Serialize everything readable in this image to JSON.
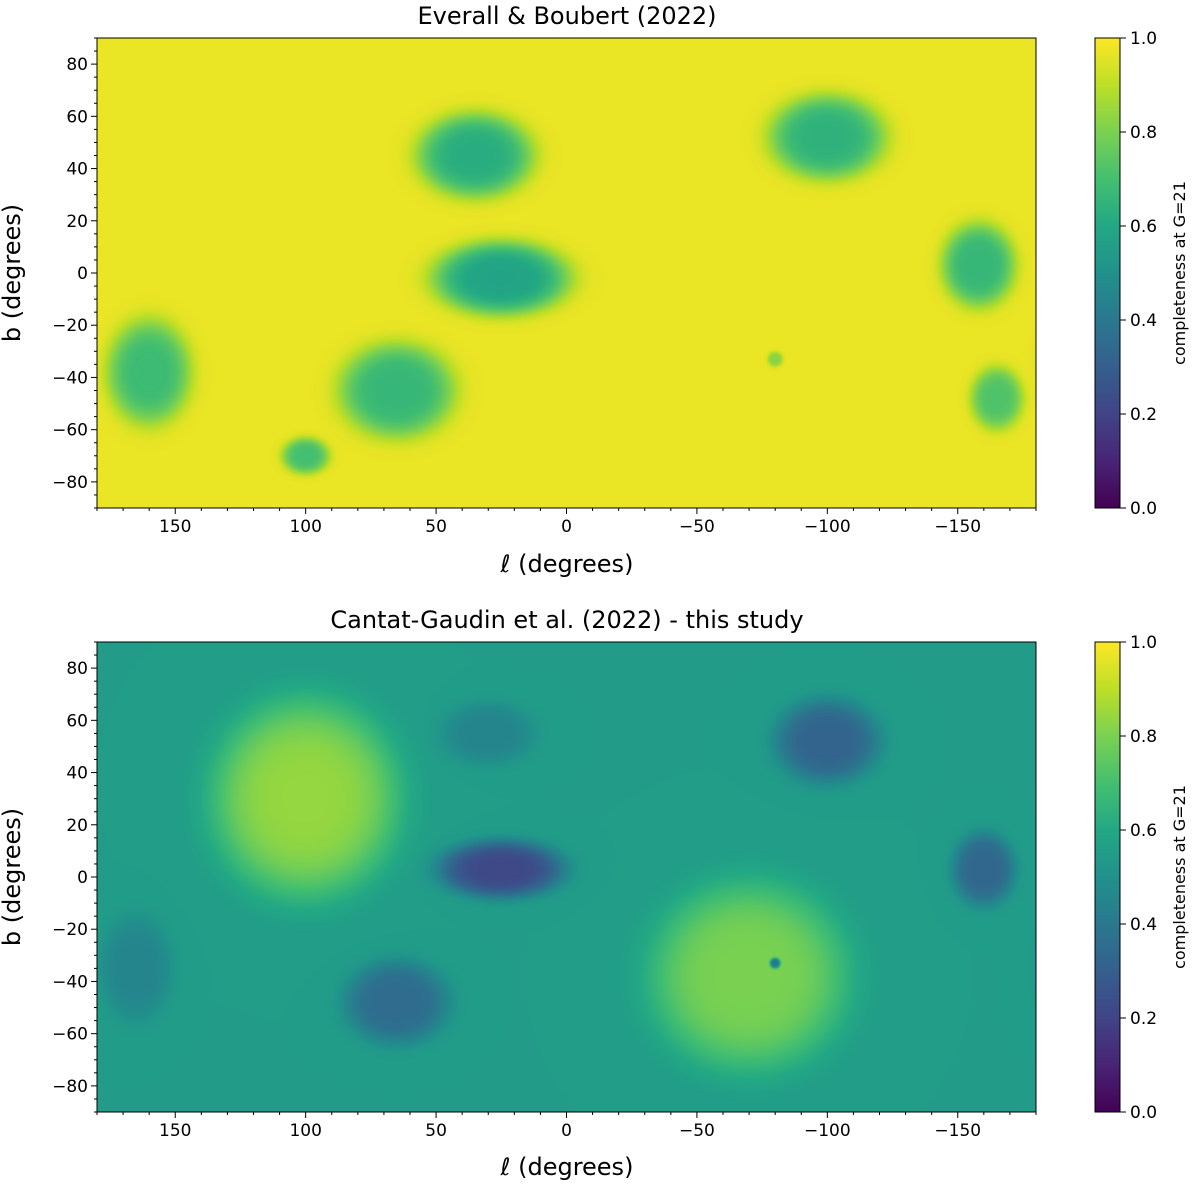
{
  "chart_data": [
    {
      "type": "heatmap",
      "title": "Everall & Boubert (2022)",
      "xlabel": "ℓ (degrees)",
      "ylabel": "b (degrees)",
      "xlim": [
        180,
        -180
      ],
      "ylim": [
        -90,
        90
      ],
      "x_ticks": [
        150,
        100,
        50,
        0,
        -50,
        -100,
        -150
      ],
      "y_ticks": [
        80,
        60,
        40,
        20,
        0,
        -20,
        -40,
        -60,
        -80
      ],
      "colorbar": {
        "label": "completeness at G=21",
        "range": [
          0.0,
          1.0
        ],
        "ticks": [
          0.0,
          0.2,
          0.4,
          0.6,
          0.8,
          1.0
        ],
        "colormap": "viridis"
      },
      "background_value": 0.97,
      "features": [
        {
          "type": "depression",
          "l": 35,
          "b": 45,
          "sl": 22,
          "sb": 16,
          "value": 0.62
        },
        {
          "type": "depression",
          "l": 25,
          "b": -2,
          "sl": 26,
          "sb": 14,
          "value": 0.58
        },
        {
          "type": "depression",
          "l": 65,
          "b": -45,
          "sl": 22,
          "sb": 18,
          "value": 0.66
        },
        {
          "type": "depression",
          "l": 160,
          "b": -38,
          "sl": 16,
          "sb": 20,
          "value": 0.68
        },
        {
          "type": "depression",
          "l": -100,
          "b": 52,
          "sl": 22,
          "sb": 16,
          "value": 0.64
        },
        {
          "type": "depression",
          "l": -158,
          "b": 3,
          "sl": 14,
          "sb": 16,
          "value": 0.66
        },
        {
          "type": "depression",
          "l": 100,
          "b": -70,
          "sl": 9,
          "sb": 7,
          "value": 0.7
        },
        {
          "type": "depression",
          "l": -165,
          "b": -48,
          "sl": 10,
          "sb": 12,
          "value": 0.72
        },
        {
          "type": "depression",
          "l": -80,
          "b": -33,
          "sl": 3,
          "sb": 3,
          "value": 0.82
        }
      ]
    },
    {
      "type": "heatmap",
      "title": "Cantat-Gaudin et al. (2022) - this study",
      "xlabel": "ℓ (degrees)",
      "ylabel": "b (degrees)",
      "xlim": [
        180,
        -180
      ],
      "ylim": [
        -90,
        90
      ],
      "x_ticks": [
        150,
        100,
        50,
        0,
        -50,
        -100,
        -150
      ],
      "y_ticks": [
        80,
        60,
        40,
        20,
        0,
        -20,
        -40,
        -60,
        -80
      ],
      "colorbar": {
        "label": "completeness at G=21",
        "range": [
          0.0,
          1.0
        ],
        "ticks": [
          0.0,
          0.2,
          0.4,
          0.6,
          0.8,
          1.0
        ],
        "colormap": "viridis"
      },
      "background_value": 0.55,
      "features": [
        {
          "type": "bright_disk",
          "l": 100,
          "b": 30,
          "sl": 36,
          "sb": 38,
          "value": 0.84
        },
        {
          "type": "bright_disk",
          "l": -70,
          "b": -38,
          "sl": 38,
          "sb": 36,
          "value": 0.8
        },
        {
          "type": "depression",
          "l": 25,
          "b": 3,
          "sl": 24,
          "sb": 11,
          "value": 0.22
        },
        {
          "type": "depression",
          "l": 65,
          "b": -48,
          "sl": 20,
          "sb": 16,
          "value": 0.35
        },
        {
          "type": "depression",
          "l": -100,
          "b": 52,
          "sl": 20,
          "sb": 16,
          "value": 0.32
        },
        {
          "type": "depression",
          "l": -160,
          "b": 3,
          "sl": 12,
          "sb": 14,
          "value": 0.33
        },
        {
          "type": "depression",
          "l": 30,
          "b": 55,
          "sl": 18,
          "sb": 12,
          "value": 0.45
        },
        {
          "type": "depression",
          "l": 165,
          "b": -35,
          "sl": 14,
          "sb": 20,
          "value": 0.45
        },
        {
          "type": "depression",
          "l": -80,
          "b": -33,
          "sl": 2,
          "sb": 2,
          "value": 0.4
        }
      ]
    }
  ]
}
